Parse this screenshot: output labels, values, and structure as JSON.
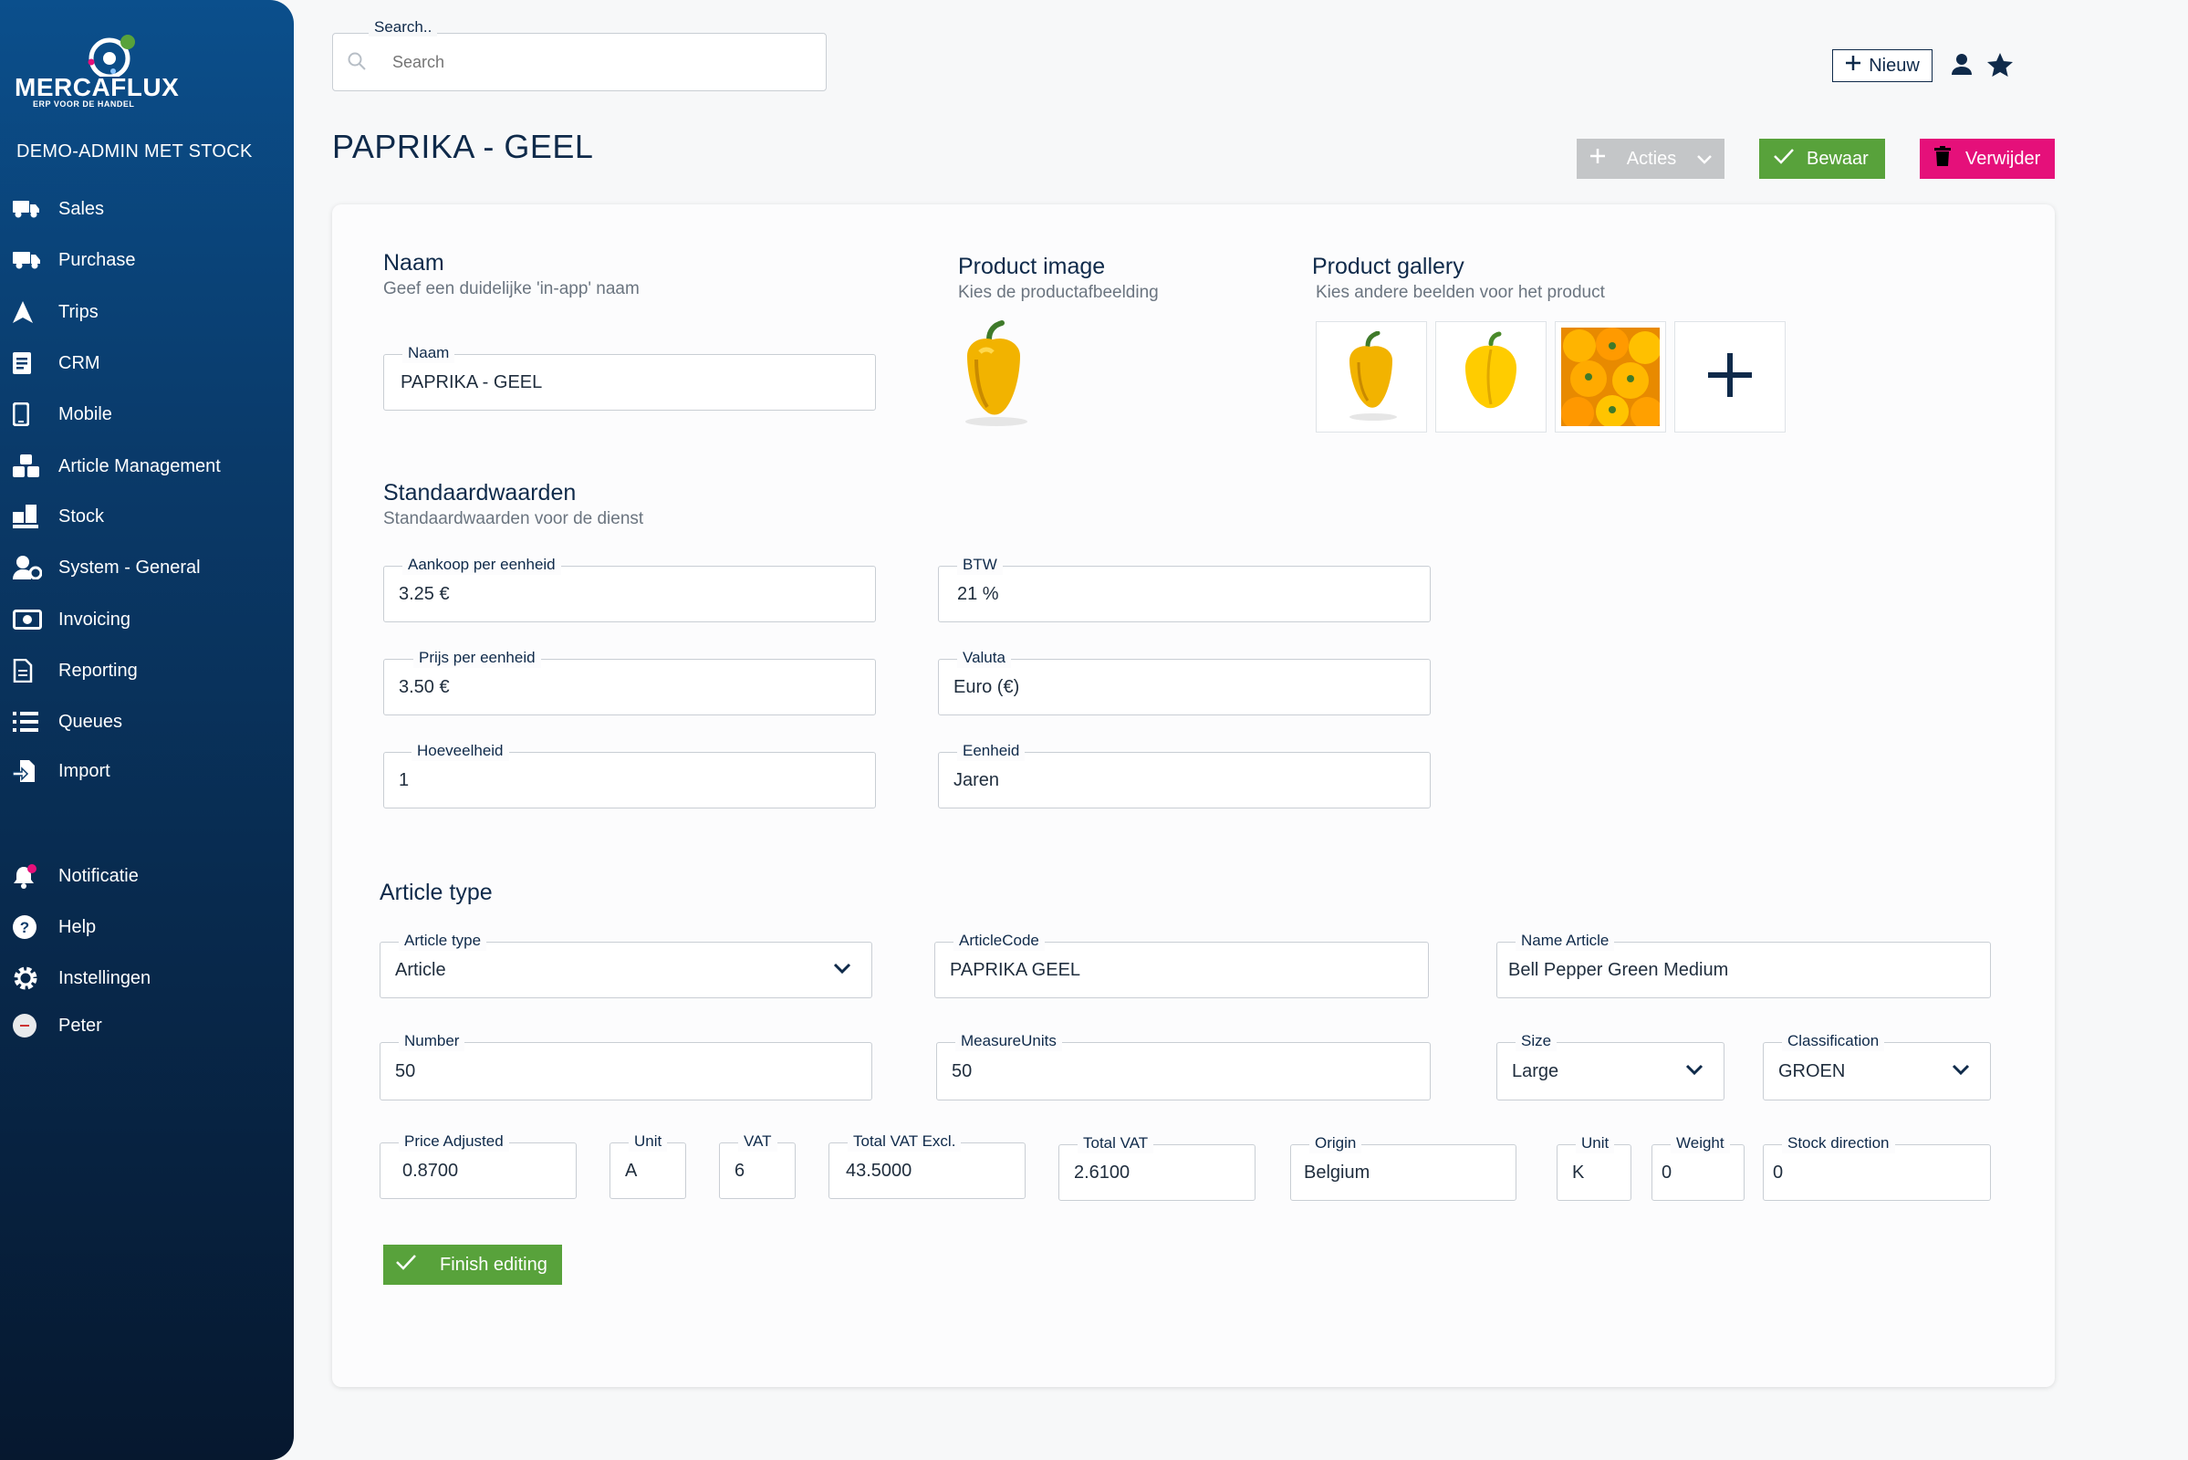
{
  "brand": {
    "logo_text": "MERCAFLUX",
    "logo_sub": "ERP VOOR DE HANDEL",
    "org": "DEMO-ADMIN MET STOCK"
  },
  "nav": [
    {
      "label": "Sales",
      "icon": "truck-icon"
    },
    {
      "label": "Purchase",
      "icon": "delivery-truck-icon"
    },
    {
      "label": "Trips",
      "icon": "navigation-arrow-icon"
    },
    {
      "label": "CRM",
      "icon": "address-book-icon"
    },
    {
      "label": "Mobile",
      "icon": "mobile-phone-icon"
    },
    {
      "label": "Article Management",
      "icon": "boxes-icon"
    },
    {
      "label": "Stock",
      "icon": "pallet-icon"
    },
    {
      "label": "System - General",
      "icon": "user-cog-icon"
    },
    {
      "label": "Invoicing",
      "icon": "money-bill-icon"
    },
    {
      "label": "Reporting",
      "icon": "file-report-icon"
    },
    {
      "label": "Queues",
      "icon": "list-icon"
    },
    {
      "label": "Import",
      "icon": "file-import-icon"
    }
  ],
  "nav_bottom": [
    {
      "label": "Notificatie",
      "icon": "bell-icon",
      "badge": "1"
    },
    {
      "label": "Help",
      "icon": "help-circle-icon"
    },
    {
      "label": "Instellingen",
      "icon": "gear-icon"
    },
    {
      "label": "Peter",
      "icon": "avatar-icon"
    }
  ],
  "search": {
    "label": "Search..",
    "placeholder": "Search"
  },
  "header": {
    "new_label": "Nieuw"
  },
  "page": {
    "title": "PAPRIKA - GEEL"
  },
  "actions": {
    "acties": "Acties",
    "save": "Bewaar",
    "delete": "Verwijder"
  },
  "naam": {
    "title": "Naam",
    "subtitle": "Geef een duidelijke 'in-app' naam",
    "field_label": "Naam",
    "value": "PAPRIKA - GEEL"
  },
  "image": {
    "title": "Product image",
    "subtitle": "Kies de productafbeelding"
  },
  "gallery": {
    "title": "Product gallery",
    "subtitle": "Kies andere beelden voor het product"
  },
  "defaults": {
    "title": "Standaardwaarden",
    "subtitle": "Standaardwaarden voor de dienst",
    "aankoop": {
      "label": "Aankoop per eenheid",
      "value": "3.25 €"
    },
    "prijs": {
      "label": "Prijs per eenheid",
      "value": "3.50 €"
    },
    "hoeveelheid": {
      "label": "Hoeveelheid",
      "value": "1"
    },
    "btw": {
      "label": "BTW",
      "value": "21 %"
    },
    "valuta": {
      "label": "Valuta",
      "value": "Euro (€)"
    },
    "eenheid": {
      "label": "Eenheid",
      "value": "Jaren"
    }
  },
  "article": {
    "title": "Article type",
    "type": {
      "label": "Article type",
      "value": "Article"
    },
    "code": {
      "label": "ArticleCode",
      "value": "PAPRIKA GEEL"
    },
    "name": {
      "label": "Name Article",
      "value": "Bell Pepper Green Medium"
    },
    "number": {
      "label": "Number",
      "value": "50"
    },
    "measure": {
      "label": "MeasureUnits",
      "value": "50"
    },
    "size": {
      "label": "Size",
      "value": "Large"
    },
    "classification": {
      "label": "Classification",
      "value": "GROEN"
    },
    "price_adjusted": {
      "label": "Price Adjusted",
      "value": "0.8700"
    },
    "unit1": {
      "label": "Unit",
      "value": "A"
    },
    "vat": {
      "label": "VAT",
      "value": "6"
    },
    "total_excl": {
      "label": "Total VAT Excl.",
      "value": "43.5000"
    },
    "total_vat": {
      "label": "Total VAT",
      "value": "2.6100"
    },
    "origin": {
      "label": "Origin",
      "value": "Belgium"
    },
    "unit2": {
      "label": "Unit",
      "value": "K"
    },
    "weight": {
      "label": "Weight",
      "value": "0"
    },
    "stock_dir": {
      "label": "Stock direction",
      "value": "0"
    }
  },
  "finish": {
    "label": "Finish editing"
  },
  "colors": {
    "sidebar_top": "#0b4f8c",
    "sidebar_bottom": "#06182f",
    "primary": "#0f2a4a",
    "save": "#58a23b",
    "delete": "#e5107a",
    "acties": "#c4c6c8"
  }
}
